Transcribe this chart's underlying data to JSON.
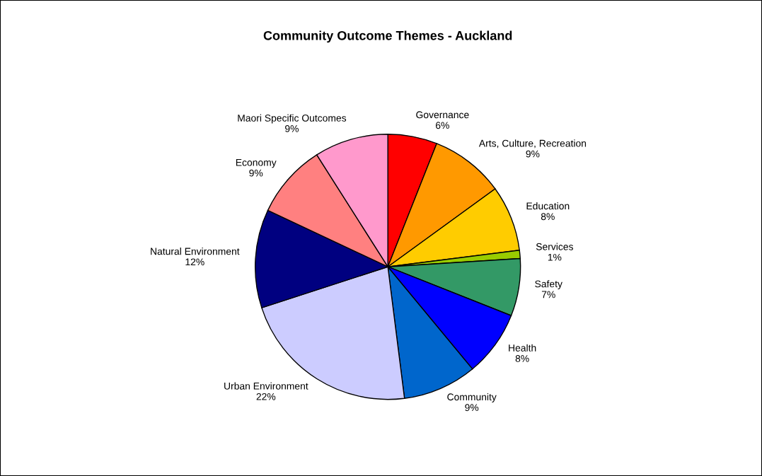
{
  "chart_data": {
    "type": "pie",
    "title": "Community Outcome Themes - Auckland",
    "categories": [
      "Governance",
      "Arts, Culture, Recreation",
      "Education",
      "Services",
      "Safety",
      "Health",
      "Community",
      "Urban Environment",
      "Natural Environment",
      "Economy",
      "Maori Specific Outcomes"
    ],
    "values": [
      6,
      9,
      8,
      1,
      7,
      8,
      9,
      22,
      12,
      9,
      9
    ],
    "value_labels": [
      "6%",
      "9%",
      "8%",
      "1%",
      "7%",
      "8%",
      "9%",
      "22%",
      "12%",
      "9%",
      "9%"
    ],
    "colors": [
      "#ff0000",
      "#ff9900",
      "#ffcc00",
      "#99cc00",
      "#339966",
      "#0000ff",
      "#0066cc",
      "#ccccff",
      "#000080",
      "#ff8080",
      "#ff99cc"
    ]
  }
}
